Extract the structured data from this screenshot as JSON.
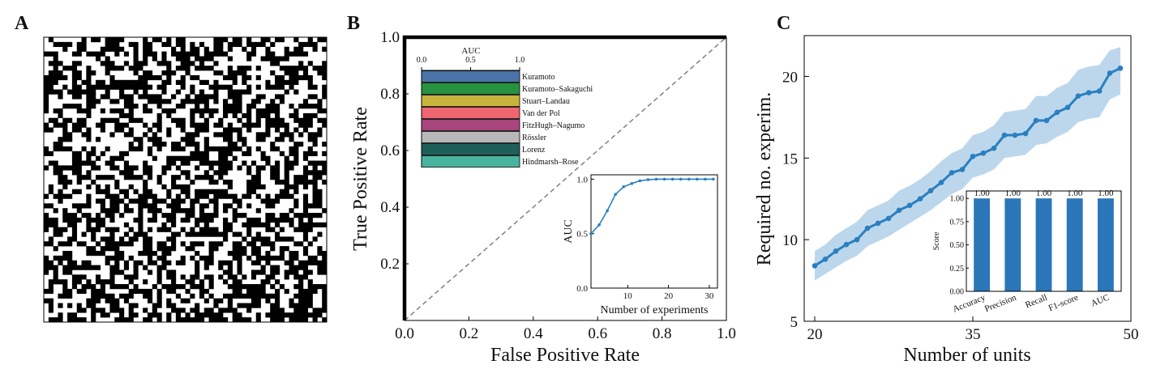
{
  "panel_labels": {
    "a": "A",
    "b": "B",
    "c": "C"
  },
  "chart_data": [
    {
      "panel": "A",
      "type": "heatmap",
      "colors": [
        "#000000",
        "#ffffff"
      ],
      "note_grid": "binary pattern",
      "grid_size": 60,
      "seed": 7
    },
    {
      "panel": "B",
      "type": "line",
      "xlabel": "False Positive Rate",
      "ylabel": "True Positive Rate",
      "xlim": [
        0,
        1
      ],
      "ylim": [
        0,
        1
      ],
      "xticks": [
        "0.0",
        "0.2",
        "0.4",
        "0.6",
        "0.8",
        "1.0"
      ],
      "yticks": [
        "0.2",
        "0.4",
        "0.6",
        "0.8",
        "1.0"
      ],
      "roc_curve": {
        "x": [
          0,
          0,
          1
        ],
        "y": [
          0,
          1,
          1
        ],
        "color": "#000000"
      },
      "diagonal": {
        "x": [
          0,
          1
        ],
        "y": [
          0,
          1
        ],
        "color": "#808080",
        "style": "dashed"
      }
    },
    {
      "panel": "B-inset-auc-bars",
      "type": "bar",
      "orientation": "horizontal",
      "title": "AUC",
      "xticks": [
        "0.0",
        "0.5",
        "1.0"
      ],
      "xlim": [
        0,
        1
      ],
      "categories": [
        "Kuramoto",
        "Kuramoto–Sakaguchi",
        "Stuart–Landau",
        "Van der Pol",
        "FitzHugh–Nagumo",
        "Rössler",
        "Lorenz",
        "Hindmarsh–Rose"
      ],
      "values": [
        1.0,
        1.0,
        1.0,
        1.0,
        1.0,
        1.0,
        1.0,
        1.0
      ],
      "colors": [
        "#4a74a8",
        "#26913f",
        "#c8b43c",
        "#ef6670",
        "#a8457c",
        "#b8b8b8",
        "#1e5f5a",
        "#48b39e"
      ]
    },
    {
      "panel": "B-inset-auc-curve",
      "type": "line",
      "xlabel": "Number of experiments",
      "ylabel": "AUC",
      "xlim": [
        1,
        32
      ],
      "ylim": [
        0,
        1.04
      ],
      "xticks": [
        "10",
        "20",
        "30"
      ],
      "yticks": [
        "0.0",
        "0.5",
        "1.0"
      ],
      "x": [
        1,
        3,
        5,
        7,
        9,
        11,
        13,
        15,
        17,
        19,
        21,
        23,
        25,
        27,
        29,
        31
      ],
      "y": [
        0.5,
        0.58,
        0.71,
        0.86,
        0.93,
        0.96,
        0.985,
        0.995,
        1.0,
        1.0,
        1.0,
        1.0,
        1.0,
        1.0,
        1.0,
        1.0
      ],
      "color": "#2a7fc0"
    },
    {
      "panel": "C",
      "type": "line",
      "xlabel": "Number of units",
      "ylabel": "Required no. experim.",
      "xlim": [
        19,
        50
      ],
      "ylim": [
        5,
        22.5
      ],
      "xticks": [
        "20",
        "35",
        "50"
      ],
      "yticks": [
        "5",
        "10",
        "15",
        "20"
      ],
      "x": [
        20,
        21,
        22,
        23,
        24,
        25,
        26,
        27,
        28,
        29,
        30,
        31,
        32,
        33,
        34,
        35,
        36,
        37,
        38,
        39,
        40,
        41,
        42,
        43,
        44,
        45,
        46,
        47,
        48,
        49
      ],
      "y": [
        8.4,
        8.8,
        9.3,
        9.7,
        10.0,
        10.7,
        11.0,
        11.3,
        11.8,
        12.1,
        12.5,
        13.0,
        13.5,
        14.1,
        14.3,
        15.1,
        15.3,
        15.6,
        16.4,
        16.4,
        16.5,
        17.3,
        17.3,
        17.8,
        18.1,
        18.8,
        19.0,
        19.1,
        20.2,
        20.5
      ],
      "band_lower": [
        7.5,
        7.9,
        8.3,
        8.7,
        9.0,
        9.6,
        9.9,
        10.2,
        10.6,
        11.0,
        11.4,
        11.8,
        12.3,
        12.8,
        13.1,
        13.8,
        14.0,
        14.3,
        15.0,
        15.1,
        15.2,
        15.8,
        15.9,
        16.3,
        16.6,
        17.2,
        17.4,
        17.5,
        18.6,
        18.9
      ],
      "band_upper": [
        9.3,
        9.7,
        10.3,
        10.7,
        11.1,
        11.8,
        12.1,
        12.4,
        13.0,
        13.3,
        13.7,
        14.2,
        14.8,
        15.3,
        15.6,
        16.4,
        16.6,
        17.0,
        17.8,
        17.9,
        18.0,
        18.8,
        18.8,
        19.3,
        19.6,
        20.4,
        20.6,
        20.7,
        21.6,
        21.8
      ],
      "color": "#2a7fc0",
      "band_color": "#bcd7ec"
    },
    {
      "panel": "C-inset",
      "type": "bar",
      "ylabel": "Score",
      "ylim": [
        0,
        1.08
      ],
      "yticks": [
        "0.00",
        "0.25",
        "0.50",
        "0.75",
        "1.00"
      ],
      "categories": [
        "Accuracy",
        "Precision",
        "Recall",
        "F1-score",
        "AUC"
      ],
      "values": [
        1.0,
        1.0,
        1.0,
        1.0,
        1.0
      ],
      "value_labels": [
        "1.00",
        "1.00",
        "1.00",
        "1.00",
        "1.00"
      ],
      "color": "#2a76b8"
    }
  ]
}
